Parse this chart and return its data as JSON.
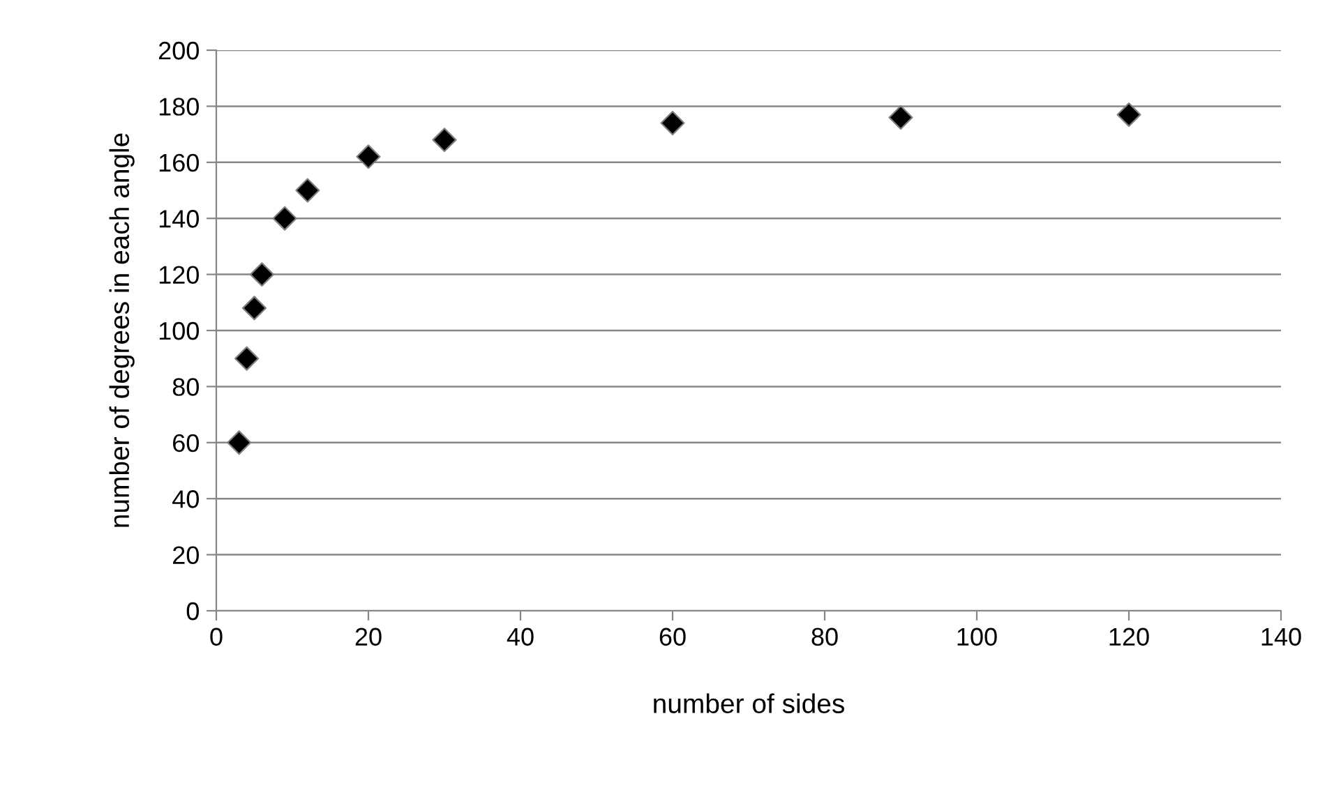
{
  "chart_data": {
    "type": "scatter",
    "xlabel": "number of sides",
    "ylabel": "number of degrees in each angle",
    "x": [
      3,
      4,
      5,
      6,
      9,
      12,
      20,
      30,
      60,
      90,
      120
    ],
    "values": [
      60,
      90,
      108,
      120,
      140,
      150,
      162,
      168,
      174,
      176,
      177
    ],
    "color": "#000000",
    "marker": "diamond",
    "xlim": [
      0,
      140
    ],
    "xticks": [
      0,
      20,
      40,
      60,
      80,
      100,
      120,
      140
    ],
    "ylim": [
      0,
      200
    ],
    "yticks": [
      0,
      20,
      40,
      60,
      80,
      100,
      120,
      140,
      160,
      180,
      200
    ],
    "grid": "y"
  }
}
